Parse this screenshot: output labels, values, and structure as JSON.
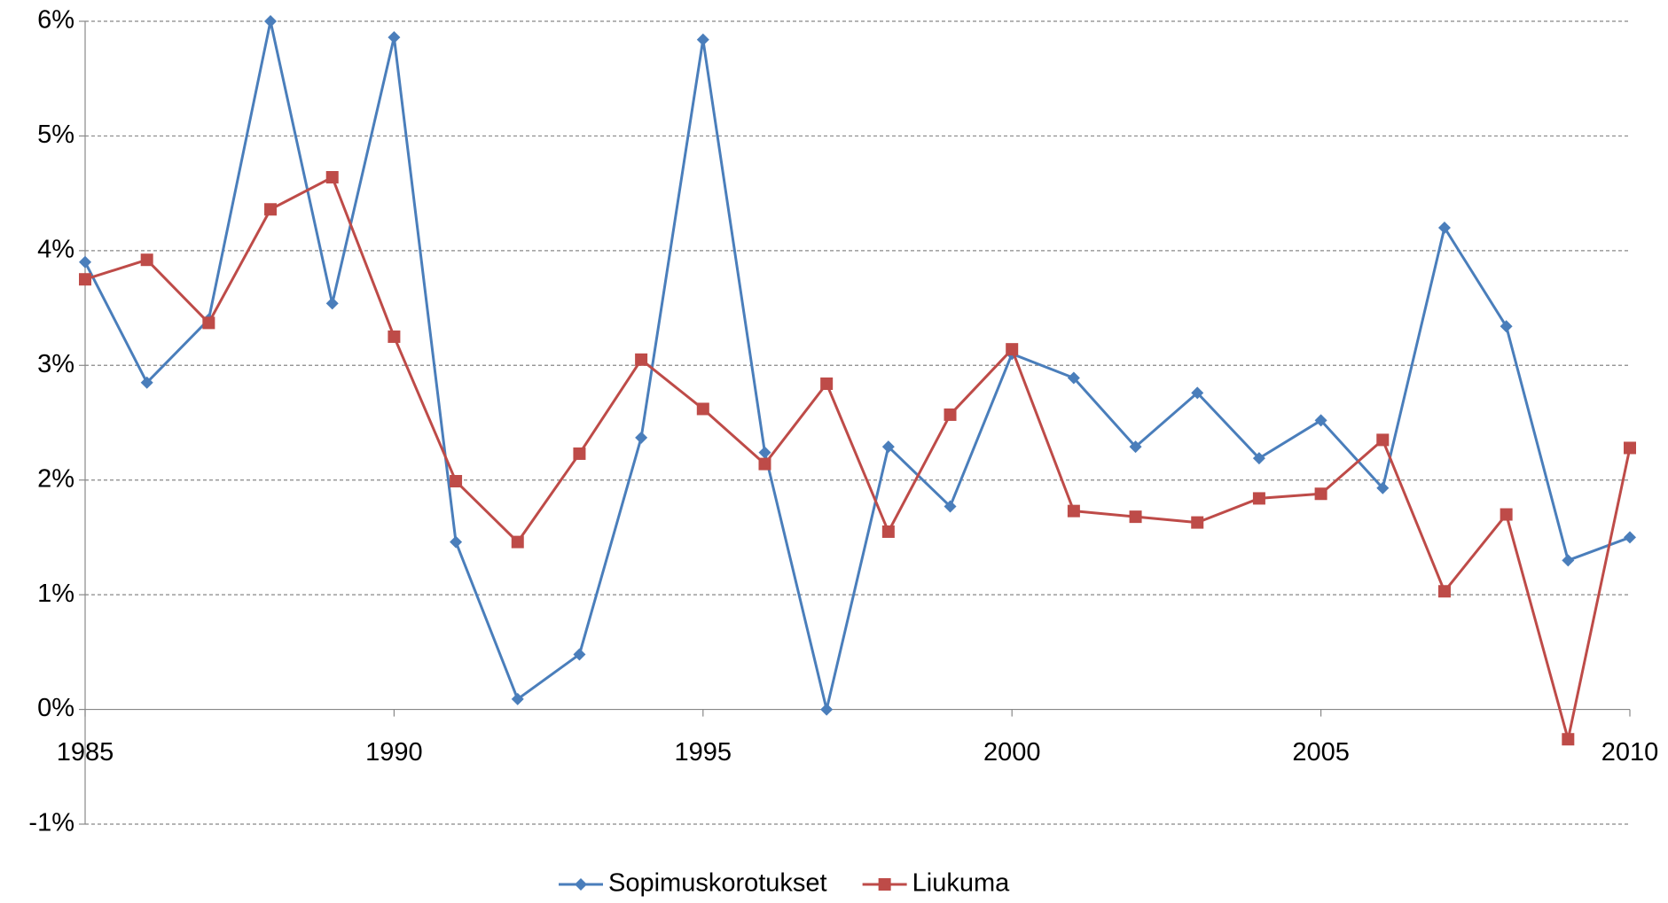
{
  "chart_data": {
    "type": "line",
    "x": [
      1985,
      1986,
      1987,
      1988,
      1989,
      1990,
      1991,
      1992,
      1993,
      1994,
      1995,
      1996,
      1997,
      1998,
      1999,
      2000,
      2001,
      2002,
      2003,
      2004,
      2005,
      2006,
      2007,
      2008,
      2009,
      2010
    ],
    "series": [
      {
        "name": "Sopimuskorotukset",
        "color": "#4a7ebb",
        "marker": "diamond",
        "values": [
          3.9,
          2.85,
          3.4,
          6.0,
          3.54,
          5.86,
          1.46,
          0.09,
          0.48,
          2.37,
          5.84,
          2.24,
          0,
          2.29,
          1.77,
          3.1,
          2.89,
          2.29,
          2.76,
          2.19,
          2.52,
          1.93,
          4.2,
          3.34,
          1.3,
          1.5
        ]
      },
      {
        "name": "Liukuma",
        "color": "#be4b48",
        "marker": "square",
        "values": [
          3.75,
          3.92,
          3.37,
          4.36,
          4.64,
          3.25,
          1.99,
          1.46,
          2.23,
          3.05,
          2.62,
          2.14,
          2.84,
          1.55,
          2.57,
          3.14,
          1.73,
          1.68,
          1.63,
          1.84,
          1.88,
          2.35,
          1.03,
          1.7,
          -0.26,
          2.28
        ]
      }
    ],
    "xlim": [
      1985,
      2010
    ],
    "xticks": [
      1985,
      1990,
      1995,
      2000,
      2005,
      2010
    ],
    "ylim": [
      -1,
      6
    ],
    "yticks": [
      {
        "value": -1,
        "label": "-1%"
      },
      {
        "value": 0,
        "label": "0%"
      },
      {
        "value": 1,
        "label": "1%"
      },
      {
        "value": 2,
        "label": "2%"
      },
      {
        "value": 3,
        "label": "3%"
      },
      {
        "value": 4,
        "label": "4%"
      },
      {
        "value": 5,
        "label": "5%"
      },
      {
        "value": 6,
        "label": "6%"
      }
    ],
    "grid": true,
    "legend": "bottom"
  }
}
